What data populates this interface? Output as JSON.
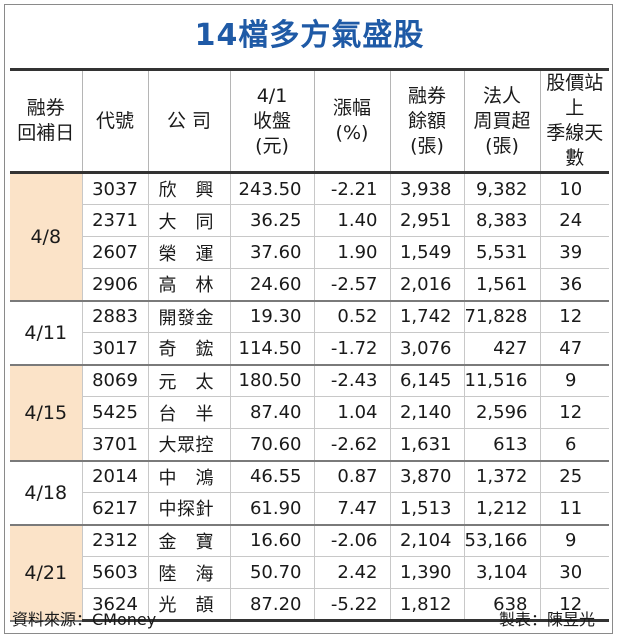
{
  "title": "14檔多方氣盛股",
  "headers": [
    "融券\n回補日",
    "代號",
    "公 司",
    "4/1\n收盤\n(元)",
    "漲幅\n(%)",
    "融券\n餘額\n(張)",
    "法人\n周買超\n(張)",
    "股價站上\n季線天數"
  ],
  "groups": [
    {
      "date": "4/8",
      "rows": [
        {
          "code": "3037",
          "company": "欣興",
          "close": "243.50",
          "change": "-2.21",
          "margin": "3,938",
          "inst": "9,382",
          "days": "10"
        },
        {
          "code": "2371",
          "company": "大同",
          "close": "36.25",
          "change": "1.40",
          "margin": "2,951",
          "inst": "8,383",
          "days": "24"
        },
        {
          "code": "2607",
          "company": "榮運",
          "close": "37.60",
          "change": "1.90",
          "margin": "1,549",
          "inst": "5,531",
          "days": "39"
        },
        {
          "code": "2906",
          "company": "高林",
          "close": "24.60",
          "change": "-2.57",
          "margin": "2,016",
          "inst": "1,561",
          "days": "36"
        }
      ]
    },
    {
      "date": "4/11",
      "rows": [
        {
          "code": "2883",
          "company": "開發金",
          "close": "19.30",
          "change": "0.52",
          "margin": "1,742",
          "inst": "71,828",
          "days": "12"
        },
        {
          "code": "3017",
          "company": "奇鋐",
          "close": "114.50",
          "change": "-1.72",
          "margin": "3,076",
          "inst": "427",
          "days": "47"
        }
      ]
    },
    {
      "date": "4/15",
      "rows": [
        {
          "code": "8069",
          "company": "元太",
          "close": "180.50",
          "change": "-2.43",
          "margin": "6,145",
          "inst": "11,516",
          "days": "9"
        },
        {
          "code": "5425",
          "company": "台半",
          "close": "87.40",
          "change": "1.04",
          "margin": "2,140",
          "inst": "2,596",
          "days": "12"
        },
        {
          "code": "3701",
          "company": "大眾控",
          "close": "70.60",
          "change": "-2.62",
          "margin": "1,631",
          "inst": "613",
          "days": "6"
        }
      ]
    },
    {
      "date": "4/18",
      "rows": [
        {
          "code": "2014",
          "company": "中鴻",
          "close": "46.55",
          "change": "0.87",
          "margin": "3,870",
          "inst": "1,372",
          "days": "25"
        },
        {
          "code": "6217",
          "company": "中探針",
          "close": "61.90",
          "change": "7.47",
          "margin": "1,513",
          "inst": "1,212",
          "days": "11"
        }
      ]
    },
    {
      "date": "4/21",
      "rows": [
        {
          "code": "2312",
          "company": "金寶",
          "close": "16.60",
          "change": "-2.06",
          "margin": "2,104",
          "inst": "53,166",
          "days": "9"
        },
        {
          "code": "5603",
          "company": "陸海",
          "close": "50.70",
          "change": "2.42",
          "margin": "1,390",
          "inst": "3,104",
          "days": "30"
        },
        {
          "code": "3624",
          "company": "光頡",
          "close": "87.20",
          "change": "-5.22",
          "margin": "1,812",
          "inst": "638",
          "days": "12"
        }
      ]
    }
  ],
  "footer": {
    "source": "資料來源：CMoney",
    "maker": "製表：陳昱光"
  }
}
